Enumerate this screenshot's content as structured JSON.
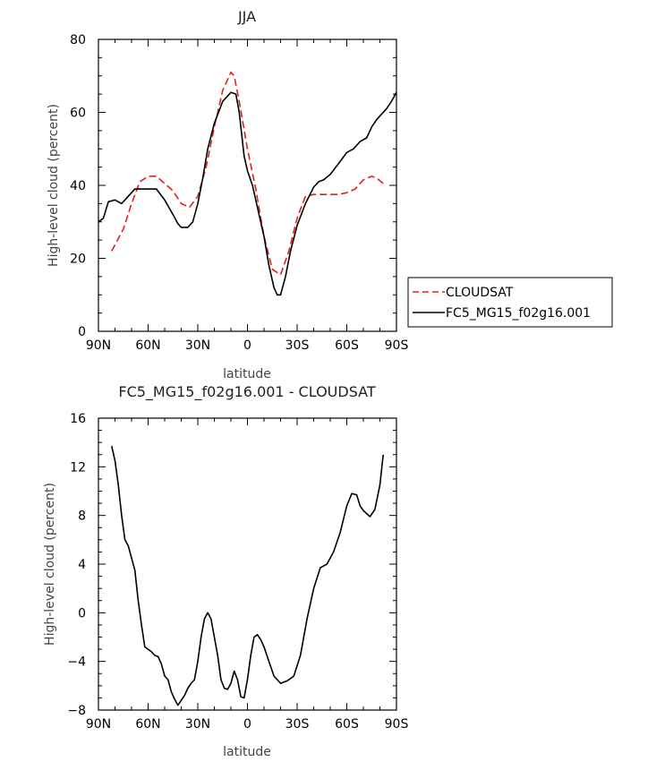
{
  "chart_data": [
    {
      "type": "line",
      "title": "JJA",
      "xlabel": "latitude",
      "ylabel": "High-level cloud (percent)",
      "xlim": [
        90,
        -90
      ],
      "ylim": [
        0,
        80
      ],
      "x_ticks": [
        90,
        60,
        30,
        0,
        -30,
        -60,
        -90
      ],
      "x_tick_labels": [
        "90N",
        "60N",
        "30N",
        "0",
        "30S",
        "60S",
        "90S"
      ],
      "y_ticks": [
        0,
        20,
        40,
        60,
        80
      ],
      "y_tick_labels": [
        "0",
        "20",
        "40",
        "60",
        "80"
      ],
      "legend_position": "right",
      "series": [
        {
          "name": "CLOUDSAT",
          "color": "#e0201e",
          "dash": "dashed",
          "x": [
            82,
            75,
            70,
            65,
            60,
            55,
            50,
            45,
            40,
            35,
            30,
            25,
            20,
            15,
            10,
            8,
            5,
            0,
            -5,
            -10,
            -15,
            -20,
            -25,
            -30,
            -35,
            -40,
            -45,
            -50,
            -55,
            -60,
            -65,
            -70,
            -75,
            -78,
            -82
          ],
          "y": [
            22,
            28,
            35,
            41,
            42.5,
            42.5,
            40.5,
            38.5,
            35,
            34,
            37,
            45,
            56,
            66,
            71,
            70,
            63,
            50,
            39,
            26,
            17,
            15.5,
            22,
            31,
            37,
            37.5,
            37.5,
            37.5,
            37.5,
            38,
            39,
            41.5,
            42.5,
            42,
            40.5
          ]
        },
        {
          "name": "FC5_MG15_f02g16.001",
          "color": "#000000",
          "dash": "solid",
          "x": [
            90,
            87,
            84,
            80,
            76,
            72,
            68,
            65,
            60,
            55,
            50,
            45,
            42,
            40,
            36,
            33,
            30,
            27,
            24,
            20,
            15,
            10,
            7,
            5,
            2,
            0,
            -3,
            -6,
            -10,
            -13,
            -16,
            -18,
            -20,
            -23,
            -26,
            -30,
            -35,
            -40,
            -43,
            -46,
            -50,
            -55,
            -60,
            -64,
            -68,
            -72,
            -75,
            -78,
            -81,
            -84,
            -87,
            -90
          ],
          "y": [
            30,
            31,
            35.5,
            36,
            35,
            37,
            39,
            39,
            39,
            39,
            36,
            32,
            29.5,
            28.5,
            28.5,
            30,
            35,
            42,
            50,
            57,
            63,
            65.5,
            65,
            60,
            48,
            44,
            40,
            34,
            26,
            18,
            12,
            10,
            10,
            15,
            22,
            29,
            35,
            39.5,
            41,
            41.5,
            43,
            46,
            49,
            50,
            52,
            53,
            56,
            58,
            59.5,
            61,
            63,
            65.5
          ]
        }
      ]
    },
    {
      "type": "line",
      "title": "FC5_MG15_f02g16.001 - CLOUDSAT",
      "xlabel": "latitude",
      "ylabel": "High-level cloud (percent)",
      "xlim": [
        90,
        -90
      ],
      "ylim": [
        -8,
        16
      ],
      "x_ticks": [
        90,
        60,
        30,
        0,
        -30,
        -60,
        -90
      ],
      "x_tick_labels": [
        "90N",
        "60N",
        "30N",
        "0",
        "30S",
        "60S",
        "90S"
      ],
      "y_ticks": [
        -8,
        -4,
        0,
        4,
        8,
        12,
        16
      ],
      "y_tick_labels": [
        "−8",
        "−4",
        "0",
        "4",
        "8",
        "12",
        "16"
      ],
      "series": [
        {
          "color": "#000000",
          "dash": "solid",
          "x": [
            82,
            80,
            78,
            76,
            74,
            72,
            70,
            68,
            66,
            64,
            62,
            60,
            58,
            56,
            54,
            52,
            50,
            48,
            46,
            44,
            42,
            40,
            38,
            36,
            34,
            32,
            30,
            28,
            26,
            24,
            22,
            20,
            18,
            16,
            14,
            12,
            10,
            8,
            6,
            4,
            2,
            0,
            -2,
            -4,
            -6,
            -8,
            -10,
            -13,
            -16,
            -20,
            -24,
            -28,
            -32,
            -36,
            -40,
            -44,
            -48,
            -52,
            -56,
            -60,
            -63,
            -66,
            -68,
            -70,
            -74,
            -77,
            -80,
            -82
          ],
          "y": [
            13.7,
            12.5,
            10.5,
            8,
            6,
            5.5,
            4.5,
            3.5,
            1,
            -1,
            -2.8,
            -3,
            -3.2,
            -3.5,
            -3.6,
            -4.2,
            -5.2,
            -5.5,
            -6.5,
            -7.1,
            -7.6,
            -7.2,
            -6.8,
            -6.2,
            -5.8,
            -5.5,
            -4,
            -2,
            -0.5,
            0,
            -0.5,
            -2,
            -3.5,
            -5.5,
            -6.2,
            -6.3,
            -5.8,
            -4.8,
            -5.5,
            -6.9,
            -7,
            -5.5,
            -3.5,
            -2,
            -1.8,
            -2.2,
            -2.8,
            -4,
            -5.2,
            -5.8,
            -5.6,
            -5.2,
            -3.5,
            -0.5,
            2,
            3.7,
            4,
            5,
            6.6,
            8.8,
            9.8,
            9.7,
            8.8,
            8.4,
            7.9,
            8.5,
            10.5,
            13
          ]
        }
      ]
    }
  ]
}
